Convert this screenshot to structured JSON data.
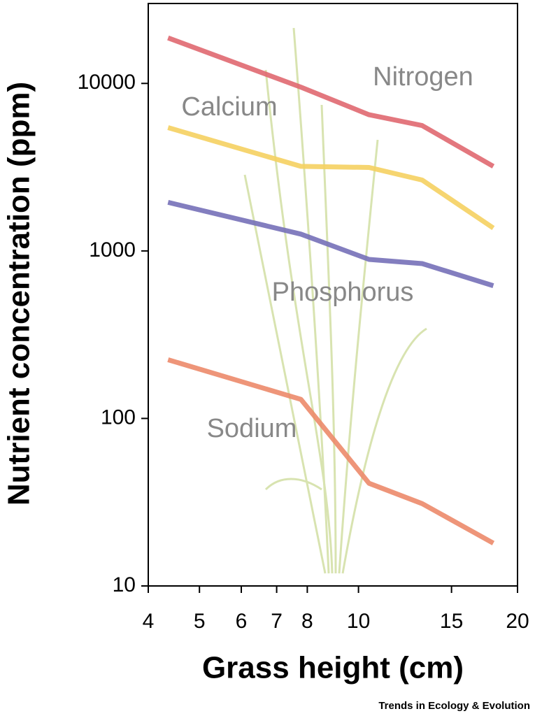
{
  "chart_data": {
    "type": "line",
    "x_label": "Grass height (cm)",
    "y_label": "Nutrient concentration (ppm)",
    "source": "Trends in Ecology & Evolution",
    "x": [
      4.36,
      7.78,
      10.47,
      13.2,
      18
    ],
    "series": [
      {
        "name": "Nitrogen",
        "color": "#e06870",
        "values": [
          18700,
          9500,
          6500,
          5600,
          3200
        ]
      },
      {
        "name": "Calcium",
        "color": "#f5d060",
        "values": [
          5450,
          3200,
          3150,
          2650,
          1370
        ]
      },
      {
        "name": "Phosphorus",
        "color": "#7670b8",
        "values": [
          1950,
          1260,
          890,
          840,
          620
        ]
      },
      {
        "name": "Sodium",
        "color": "#ec8a6a",
        "values": [
          224,
          130,
          41,
          31,
          18
        ]
      }
    ],
    "xlim": [
      4,
      20
    ],
    "xticks": [
      4,
      5,
      6,
      7,
      8,
      10,
      15,
      20
    ],
    "ylim": [
      10,
      30000
    ],
    "yticks": [
      10,
      100,
      1000,
      10000
    ],
    "log_x": true,
    "log_y": true
  }
}
